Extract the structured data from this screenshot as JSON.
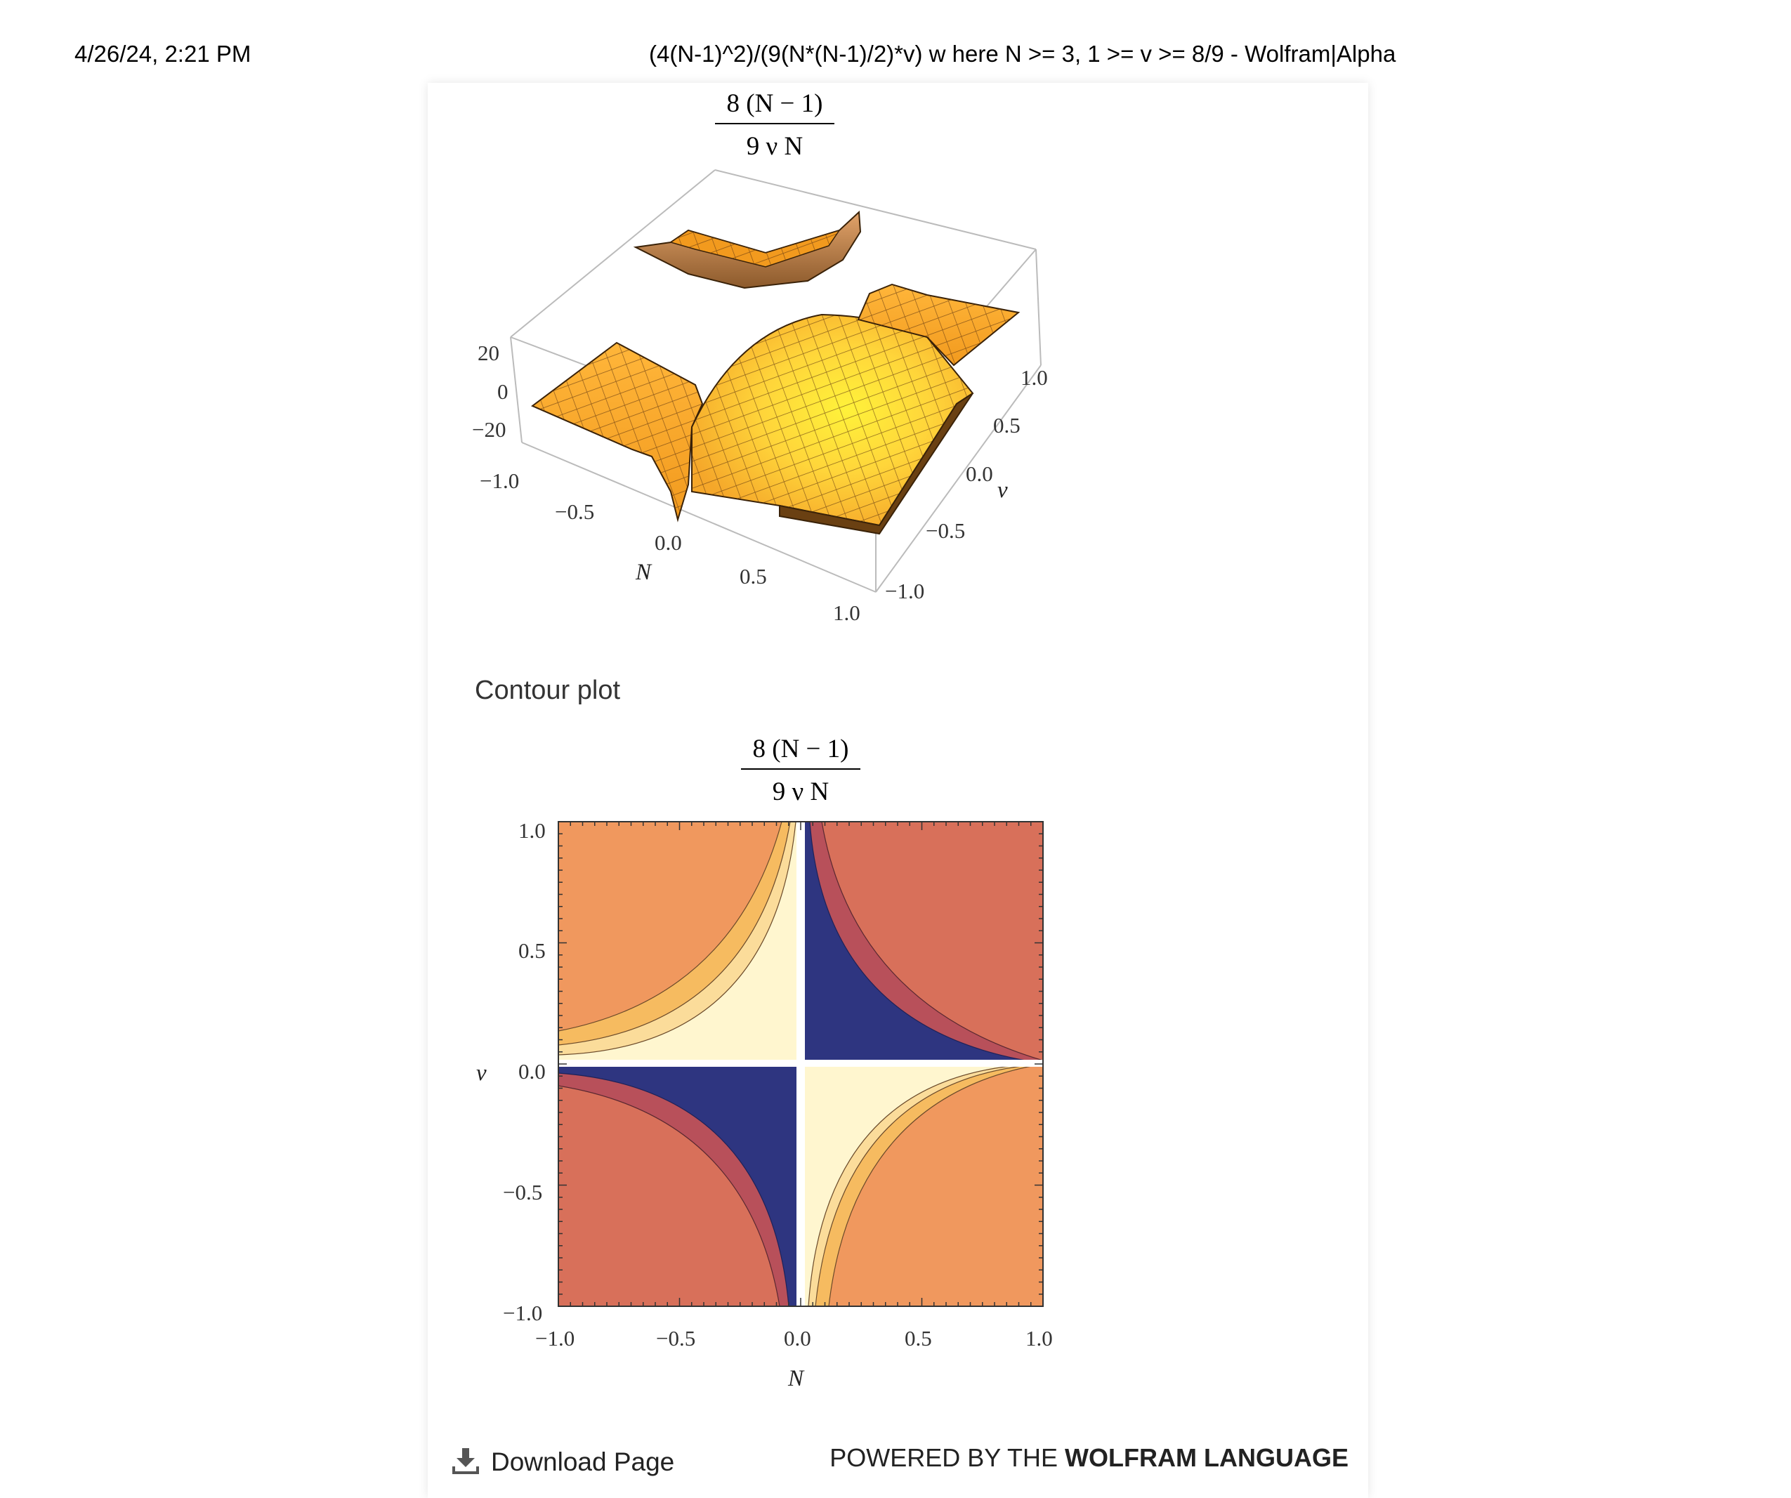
{
  "print_header": {
    "date": "4/26/24, 2:21 PM",
    "title": "(4(N-1)^2)/(9(N*(N-1)/2)*v) w here N >= 3, 1 >= v >= 8/9 - Wolfram|Alpha"
  },
  "plot3d": {
    "numerator": "8 (N − 1)",
    "denominator": "9 ν N",
    "z_ticks": [
      "20",
      "0",
      "−20"
    ],
    "n_ticks": [
      "−1.0",
      "−0.5",
      "0.0",
      "0.5",
      "1.0"
    ],
    "v_ticks": [
      "1.0",
      "0.5",
      "0.0",
      "−0.5",
      "−1.0"
    ],
    "n_label": "N",
    "v_label": "ν"
  },
  "contour": {
    "section_title": "Contour plot",
    "numerator": "8 (N − 1)",
    "denominator": "9 ν N",
    "x_ticks": [
      "−1.0",
      "−0.5",
      "0.0",
      "0.5",
      "1.0"
    ],
    "y_ticks": [
      "1.0",
      "0.5",
      "0.0",
      "−0.5",
      "−1.0"
    ],
    "x_label": "N",
    "y_label": "ν",
    "colors": {
      "navy": "#2e3580",
      "dark_red": "#b8505a",
      "red_orange": "#d8705a",
      "orange": "#f0985e",
      "gold": "#f6bb60",
      "light": "#fbdc9a",
      "cream": "#fff6cf"
    }
  },
  "footer": {
    "download_label": "Download Page",
    "powered_prefix": "POWERED BY THE",
    "powered_brand": "WOLFRAM LANGUAGE"
  },
  "chart_data": [
    {
      "type": "surface3d",
      "title": "8 (N − 1) / (9 ν N)",
      "xlabel": "N",
      "ylabel": "ν",
      "xlim": [
        -1,
        1
      ],
      "ylim": [
        -1,
        1
      ],
      "zlim": [
        -20,
        20
      ],
      "z_ticks": [
        20,
        0,
        -20
      ]
    },
    {
      "type": "contour",
      "title": "8 (N − 1) / (9 ν N)",
      "xlabel": "N",
      "ylabel": "ν",
      "xlim": [
        -1,
        1
      ],
      "ylim": [
        -1,
        1
      ],
      "x_ticks": [
        -1.0,
        -0.5,
        0.0,
        0.5,
        1.0
      ],
      "y_ticks": [
        1.0,
        0.5,
        0.0,
        -0.5,
        -1.0
      ]
    }
  ]
}
